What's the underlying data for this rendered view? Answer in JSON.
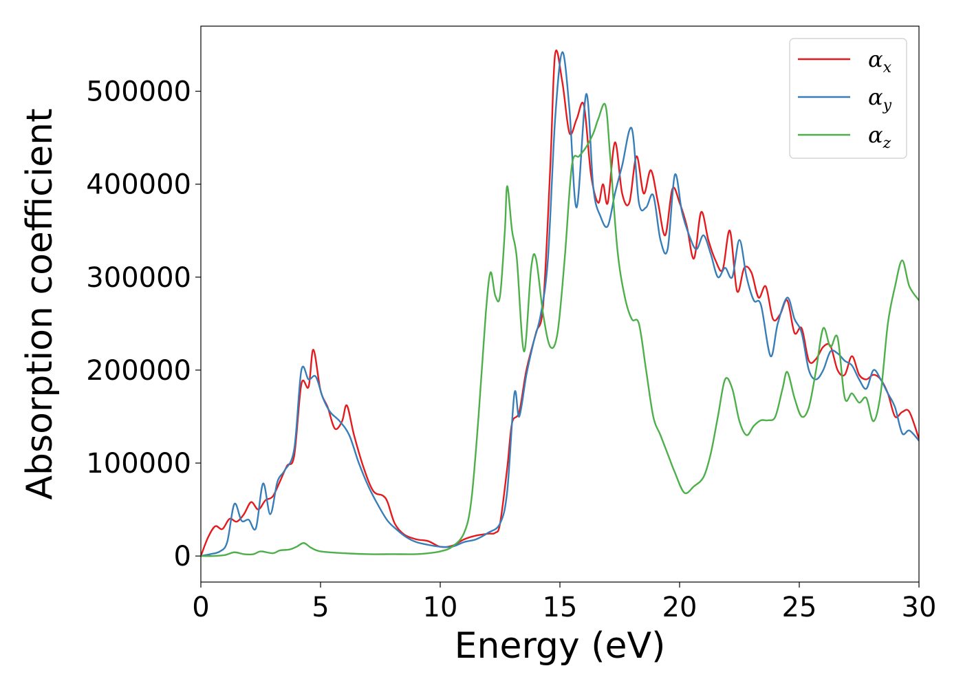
{
  "chart_data": {
    "type": "line",
    "xlabel": "Energy (eV)",
    "ylabel": "Absorption coefficient",
    "xlim": [
      0,
      30
    ],
    "ylim": [
      -28000,
      570000
    ],
    "xticks": [
      0,
      5,
      10,
      15,
      20,
      25,
      30
    ],
    "xtick_labels": [
      "0",
      "5",
      "10",
      "15",
      "20",
      "25",
      "30"
    ],
    "yticks": [
      0,
      100000,
      200000,
      300000,
      400000,
      500000
    ],
    "ytick_labels": [
      "0",
      "100000",
      "200000",
      "300000",
      "400000",
      "500000"
    ],
    "grid": false,
    "legend_position": "top-right",
    "series": [
      {
        "name": "α",
        "subscript": "x",
        "color": "#e41a1c",
        "points": [
          [
            0.0,
            0
          ],
          [
            0.3,
            20000
          ],
          [
            0.6,
            32000
          ],
          [
            0.9,
            29000
          ],
          [
            1.2,
            40000
          ],
          [
            1.5,
            37000
          ],
          [
            1.8,
            45000
          ],
          [
            2.1,
            58000
          ],
          [
            2.4,
            50000
          ],
          [
            2.7,
            60000
          ],
          [
            3.0,
            64000
          ],
          [
            3.3,
            80000
          ],
          [
            3.6,
            97000
          ],
          [
            3.9,
            108000
          ],
          [
            4.2,
            185000
          ],
          [
            4.5,
            182000
          ],
          [
            4.7,
            222000
          ],
          [
            5.0,
            178000
          ],
          [
            5.3,
            160000
          ],
          [
            5.6,
            137000
          ],
          [
            5.9,
            145000
          ],
          [
            6.1,
            162000
          ],
          [
            6.4,
            130000
          ],
          [
            6.8,
            95000
          ],
          [
            7.2,
            70000
          ],
          [
            7.6,
            65000
          ],
          [
            7.8,
            58000
          ],
          [
            8.1,
            35000
          ],
          [
            8.5,
            23000
          ],
          [
            9.0,
            18000
          ],
          [
            9.5,
            16000
          ],
          [
            10.0,
            10000
          ],
          [
            10.5,
            11000
          ],
          [
            11.0,
            18000
          ],
          [
            11.5,
            22000
          ],
          [
            12.0,
            24000
          ],
          [
            12.3,
            25000
          ],
          [
            12.5,
            35000
          ],
          [
            12.8,
            95000
          ],
          [
            13.0,
            143000
          ],
          [
            13.3,
            155000
          ],
          [
            13.6,
            200000
          ],
          [
            14.0,
            240000
          ],
          [
            14.3,
            270000
          ],
          [
            14.6,
            420000
          ],
          [
            14.8,
            540000
          ],
          [
            15.1,
            510000
          ],
          [
            15.4,
            455000
          ],
          [
            15.7,
            470000
          ],
          [
            16.0,
            485000
          ],
          [
            16.3,
            410000
          ],
          [
            16.6,
            380000
          ],
          [
            16.8,
            400000
          ],
          [
            17.0,
            380000
          ],
          [
            17.3,
            445000
          ],
          [
            17.6,
            390000
          ],
          [
            17.9,
            380000
          ],
          [
            18.2,
            430000
          ],
          [
            18.5,
            390000
          ],
          [
            18.8,
            415000
          ],
          [
            19.1,
            380000
          ],
          [
            19.4,
            345000
          ],
          [
            19.7,
            395000
          ],
          [
            20.0,
            380000
          ],
          [
            20.3,
            355000
          ],
          [
            20.6,
            320000
          ],
          [
            20.9,
            370000
          ],
          [
            21.2,
            340000
          ],
          [
            21.5,
            318000
          ],
          [
            21.8,
            308000
          ],
          [
            22.1,
            350000
          ],
          [
            22.4,
            285000
          ],
          [
            22.7,
            310000
          ],
          [
            23.0,
            305000
          ],
          [
            23.3,
            278000
          ],
          [
            23.6,
            290000
          ],
          [
            23.9,
            255000
          ],
          [
            24.2,
            260000
          ],
          [
            24.5,
            275000
          ],
          [
            24.8,
            240000
          ],
          [
            25.1,
            245000
          ],
          [
            25.4,
            210000
          ],
          [
            25.7,
            212000
          ],
          [
            26.0,
            225000
          ],
          [
            26.3,
            226000
          ],
          [
            26.6,
            200000
          ],
          [
            26.9,
            195000
          ],
          [
            27.2,
            215000
          ],
          [
            27.5,
            195000
          ],
          [
            27.8,
            190000
          ],
          [
            28.1,
            195000
          ],
          [
            28.4,
            190000
          ],
          [
            28.7,
            175000
          ],
          [
            29.0,
            150000
          ],
          [
            29.3,
            155000
          ],
          [
            29.6,
            155000
          ],
          [
            30.0,
            126000
          ]
        ]
      },
      {
        "name": "α",
        "subscript": "y",
        "color": "#377eb8",
        "points": [
          [
            0.0,
            0
          ],
          [
            0.4,
            2000
          ],
          [
            0.8,
            5000
          ],
          [
            1.1,
            15000
          ],
          [
            1.4,
            56000
          ],
          [
            1.7,
            38000
          ],
          [
            2.0,
            39000
          ],
          [
            2.3,
            30000
          ],
          [
            2.6,
            78000
          ],
          [
            2.9,
            45000
          ],
          [
            3.2,
            80000
          ],
          [
            3.5,
            92000
          ],
          [
            3.9,
            115000
          ],
          [
            4.2,
            200000
          ],
          [
            4.5,
            190000
          ],
          [
            4.8,
            193000
          ],
          [
            5.1,
            170000
          ],
          [
            5.4,
            155000
          ],
          [
            5.8,
            145000
          ],
          [
            6.2,
            130000
          ],
          [
            6.6,
            100000
          ],
          [
            7.0,
            75000
          ],
          [
            7.4,
            55000
          ],
          [
            7.8,
            38000
          ],
          [
            8.2,
            28000
          ],
          [
            8.6,
            20000
          ],
          [
            9.0,
            15000
          ],
          [
            9.5,
            12000
          ],
          [
            10.0,
            10000
          ],
          [
            10.5,
            10000
          ],
          [
            11.0,
            15000
          ],
          [
            11.5,
            18000
          ],
          [
            12.0,
            25000
          ],
          [
            12.5,
            35000
          ],
          [
            12.8,
            70000
          ],
          [
            13.1,
            175000
          ],
          [
            13.3,
            150000
          ],
          [
            13.6,
            195000
          ],
          [
            13.9,
            230000
          ],
          [
            14.2,
            260000
          ],
          [
            14.5,
            320000
          ],
          [
            14.8,
            470000
          ],
          [
            15.1,
            542000
          ],
          [
            15.4,
            480000
          ],
          [
            15.7,
            375000
          ],
          [
            16.1,
            497000
          ],
          [
            16.4,
            395000
          ],
          [
            16.7,
            365000
          ],
          [
            17.0,
            355000
          ],
          [
            17.3,
            390000
          ],
          [
            17.6,
            420000
          ],
          [
            18.0,
            460000
          ],
          [
            18.3,
            380000
          ],
          [
            18.6,
            375000
          ],
          [
            18.9,
            388000
          ],
          [
            19.2,
            340000
          ],
          [
            19.5,
            330000
          ],
          [
            19.8,
            410000
          ],
          [
            20.1,
            370000
          ],
          [
            20.4,
            345000
          ],
          [
            20.7,
            330000
          ],
          [
            21.0,
            345000
          ],
          [
            21.3,
            325000
          ],
          [
            21.6,
            300000
          ],
          [
            21.9,
            310000
          ],
          [
            22.2,
            300000
          ],
          [
            22.5,
            340000
          ],
          [
            22.8,
            300000
          ],
          [
            23.1,
            275000
          ],
          [
            23.4,
            270000
          ],
          [
            23.8,
            215000
          ],
          [
            24.1,
            250000
          ],
          [
            24.5,
            278000
          ],
          [
            24.8,
            255000
          ],
          [
            25.1,
            240000
          ],
          [
            25.4,
            200000
          ],
          [
            25.7,
            190000
          ],
          [
            26.0,
            200000
          ],
          [
            26.3,
            220000
          ],
          [
            26.6,
            218000
          ],
          [
            26.9,
            210000
          ],
          [
            27.2,
            205000
          ],
          [
            27.5,
            190000
          ],
          [
            27.8,
            180000
          ],
          [
            28.1,
            200000
          ],
          [
            28.4,
            190000
          ],
          [
            28.7,
            175000
          ],
          [
            29.0,
            160000
          ],
          [
            29.3,
            132000
          ],
          [
            29.6,
            135000
          ],
          [
            30.0,
            124000
          ]
        ]
      },
      {
        "name": "α",
        "subscript": "z",
        "color": "#4daf4a",
        "points": [
          [
            0.0,
            0
          ],
          [
            0.5,
            0
          ],
          [
            1.0,
            1000
          ],
          [
            1.4,
            4000
          ],
          [
            1.8,
            2000
          ],
          [
            2.2,
            2000
          ],
          [
            2.5,
            5000
          ],
          [
            3.0,
            3000
          ],
          [
            3.3,
            6000
          ],
          [
            3.7,
            7000
          ],
          [
            4.0,
            10000
          ],
          [
            4.3,
            14000
          ],
          [
            4.6,
            9000
          ],
          [
            5.0,
            5000
          ],
          [
            6.0,
            3000
          ],
          [
            7.0,
            2000
          ],
          [
            8.0,
            2000
          ],
          [
            9.0,
            2000
          ],
          [
            9.5,
            3000
          ],
          [
            10.0,
            5000
          ],
          [
            10.5,
            10000
          ],
          [
            11.0,
            25000
          ],
          [
            11.3,
            60000
          ],
          [
            11.6,
            150000
          ],
          [
            11.9,
            260000
          ],
          [
            12.1,
            305000
          ],
          [
            12.3,
            280000
          ],
          [
            12.5,
            280000
          ],
          [
            12.7,
            350000
          ],
          [
            12.8,
            398000
          ],
          [
            13.0,
            350000
          ],
          [
            13.2,
            320000
          ],
          [
            13.5,
            220000
          ],
          [
            13.8,
            310000
          ],
          [
            14.0,
            320000
          ],
          [
            14.3,
            260000
          ],
          [
            14.6,
            225000
          ],
          [
            14.9,
            240000
          ],
          [
            15.2,
            320000
          ],
          [
            15.5,
            420000
          ],
          [
            15.8,
            430000
          ],
          [
            16.1,
            440000
          ],
          [
            16.4,
            455000
          ],
          [
            16.6,
            470000
          ],
          [
            16.9,
            485000
          ],
          [
            17.1,
            430000
          ],
          [
            17.4,
            330000
          ],
          [
            17.7,
            280000
          ],
          [
            18.0,
            255000
          ],
          [
            18.3,
            250000
          ],
          [
            18.6,
            200000
          ],
          [
            18.9,
            150000
          ],
          [
            19.2,
            130000
          ],
          [
            19.5,
            110000
          ],
          [
            19.8,
            90000
          ],
          [
            20.2,
            68000
          ],
          [
            20.6,
            75000
          ],
          [
            21.0,
            85000
          ],
          [
            21.3,
            110000
          ],
          [
            21.6,
            150000
          ],
          [
            21.9,
            190000
          ],
          [
            22.2,
            180000
          ],
          [
            22.5,
            145000
          ],
          [
            22.8,
            130000
          ],
          [
            23.1,
            140000
          ],
          [
            23.4,
            146000
          ],
          [
            23.7,
            146000
          ],
          [
            24.0,
            150000
          ],
          [
            24.3,
            180000
          ],
          [
            24.5,
            198000
          ],
          [
            24.8,
            170000
          ],
          [
            25.1,
            150000
          ],
          [
            25.4,
            160000
          ],
          [
            25.7,
            200000
          ],
          [
            26.0,
            245000
          ],
          [
            26.3,
            225000
          ],
          [
            26.6,
            235000
          ],
          [
            26.9,
            170000
          ],
          [
            27.2,
            175000
          ],
          [
            27.5,
            165000
          ],
          [
            27.8,
            170000
          ],
          [
            28.1,
            145000
          ],
          [
            28.4,
            175000
          ],
          [
            28.7,
            250000
          ],
          [
            29.0,
            290000
          ],
          [
            29.3,
            318000
          ],
          [
            29.6,
            290000
          ],
          [
            30.0,
            275000
          ]
        ]
      }
    ]
  }
}
